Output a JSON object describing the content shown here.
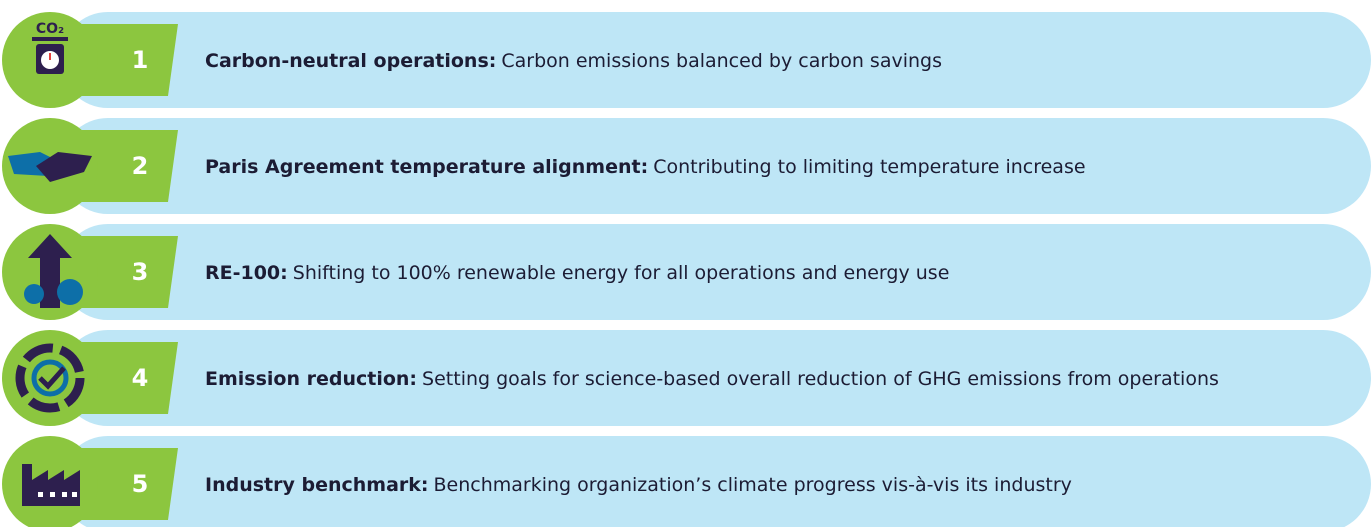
{
  "items": [
    {
      "number": 1,
      "icon_label": "CO₂",
      "title": "Carbon-neutral operations:",
      "description": "Carbon emissions balanced by carbon savings"
    },
    {
      "number": 2,
      "title": "Paris Agreement temperature alignment:",
      "description": "Contributing to limiting temperature increase"
    },
    {
      "number": 3,
      "title": "RE-100:",
      "description": "Shifting to 100% renewable energy for all operations and energy use"
    },
    {
      "number": 4,
      "title": "Emission reduction:",
      "description": "Setting goals for science-based overall reduction of GHG emissions from operations"
    },
    {
      "number": 5,
      "title": "Industry benchmark:",
      "description": "Benchmarking organization’s climate progress vis-à-vis its industry"
    }
  ]
}
